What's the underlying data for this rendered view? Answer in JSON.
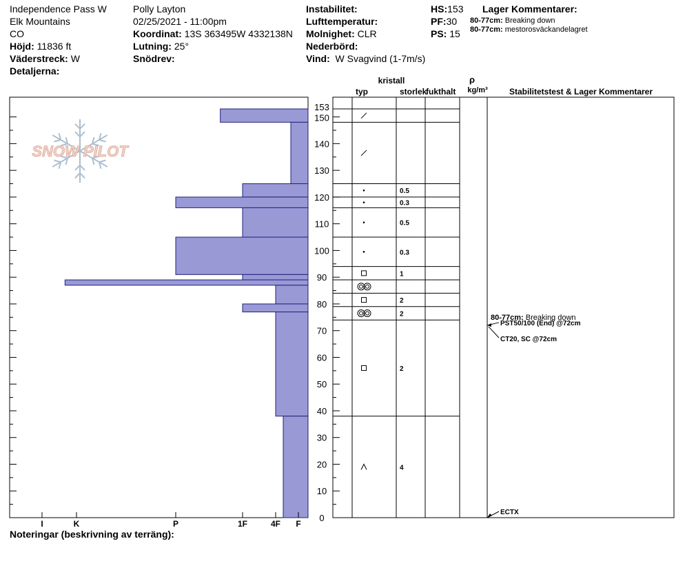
{
  "header": {
    "location": "Independence Pass W",
    "range": "Elk Mountains",
    "state": "CO",
    "elevation_label": "Höjd:",
    "elevation": "11836 ft",
    "aspect_label": "Väderstreck:",
    "aspect": "W",
    "details_label": "Detaljerna:",
    "observer": "Polly Layton",
    "datetime": "02/25/2021 - 11:00pm",
    "coord_label": "Koordinat:",
    "coord": "13S 363495W 4332138N",
    "slope_label": "Lutning:",
    "slope": "25°",
    "drift_label": "Snödrev:",
    "instability_label": "Instabilitet:",
    "airtemp_label": "Lufttemperatur:",
    "sky_label": "Molnighet:",
    "sky": "CLR",
    "precip_label": "Nederbörd:",
    "wind_label": "Vind:",
    "wind": "W Svagvind (1-7m/s)",
    "hs_label": "HS:",
    "hs": "153",
    "pf_label": "PF:",
    "pf": "30",
    "ps_label": "PS:",
    "ps": "15",
    "layer_comments_title": "Lager Kommentarer:",
    "comment1_range": "80-77cm:",
    "comment1_text": "Breaking down",
    "comment2_range": "80-77cm:",
    "comment2_text": "mestorosväckandelagret"
  },
  "logo_text": "SNOW PILOT",
  "notes_label": "Noteringar (beskrivning av terräng):",
  "columns": {
    "crystal": "kristall",
    "type": "typ",
    "size": "storlek",
    "moisture": "fukthalt",
    "rho": "ρ",
    "density_unit": "kg/m³",
    "stability": "Stabilitetstest & Lager Kommentarer"
  },
  "colors": {
    "hardness_fill": "#9999d6",
    "hardness_stroke": "#20207a"
  },
  "chart_data": {
    "type": "bar",
    "y_range": [
      0,
      153
    ],
    "y_ticks": [
      0,
      10,
      20,
      30,
      40,
      50,
      60,
      70,
      80,
      90,
      100,
      110,
      120,
      130,
      140,
      150,
      153
    ],
    "hardness_scale": [
      "I",
      "K",
      "P",
      "1F",
      "4F",
      "F"
    ],
    "hardness_profile": [
      {
        "top": 153,
        "bottom": 148,
        "hardness": "1F+"
      },
      {
        "top": 148,
        "bottom": 125,
        "hardness": "F+"
      },
      {
        "top": 125,
        "bottom": 120,
        "hardness": "1F"
      },
      {
        "top": 120,
        "bottom": 116,
        "hardness": "P"
      },
      {
        "top": 116,
        "bottom": 105,
        "hardness": "1F"
      },
      {
        "top": 105,
        "bottom": 91,
        "hardness": "P"
      },
      {
        "top": 91,
        "bottom": 89,
        "hardness": "1F"
      },
      {
        "top": 89,
        "bottom": 87,
        "hardness": "K+"
      },
      {
        "top": 87,
        "bottom": 80,
        "hardness": "4F"
      },
      {
        "top": 80,
        "bottom": 77,
        "hardness": "1F"
      },
      {
        "top": 77,
        "bottom": 38,
        "hardness": "4F"
      },
      {
        "top": 38,
        "bottom": 0,
        "hardness": "4F-"
      }
    ],
    "layers": [
      {
        "top": 153,
        "bottom": 148,
        "grain": "/",
        "size": ""
      },
      {
        "top": 148,
        "bottom": 125,
        "grain": "/",
        "size": ""
      },
      {
        "top": 125,
        "bottom": 120,
        "grain": "•",
        "size": "0.5"
      },
      {
        "top": 120,
        "bottom": 116,
        "grain": "•",
        "size": "0.3"
      },
      {
        "top": 116,
        "bottom": 105,
        "grain": "•",
        "size": "0.5"
      },
      {
        "top": 105,
        "bottom": 94,
        "grain": "•",
        "size": "0.3"
      },
      {
        "top": 94,
        "bottom": 89,
        "grain": "□",
        "size": "1"
      },
      {
        "top": 89,
        "bottom": 84,
        "grain": "◎◎",
        "size": ""
      },
      {
        "top": 84,
        "bottom": 79,
        "grain": "□",
        "size": "2"
      },
      {
        "top": 79,
        "bottom": 74,
        "grain": "◎◎",
        "size": "2"
      },
      {
        "top": 74,
        "bottom": 38,
        "grain": "□",
        "size": "2"
      },
      {
        "top": 38,
        "bottom": 0,
        "grain": "^",
        "size": "4"
      }
    ],
    "stability_comments": [
      {
        "range": "80-77cm:",
        "text": "Breaking down"
      }
    ],
    "stability_tests": [
      {
        "depth": 72,
        "text": "PST50/100 (End) @72cm"
      },
      {
        "depth": 72,
        "text": "CT20, SC @72cm"
      },
      {
        "depth": 0,
        "text": "ECTX"
      }
    ]
  }
}
